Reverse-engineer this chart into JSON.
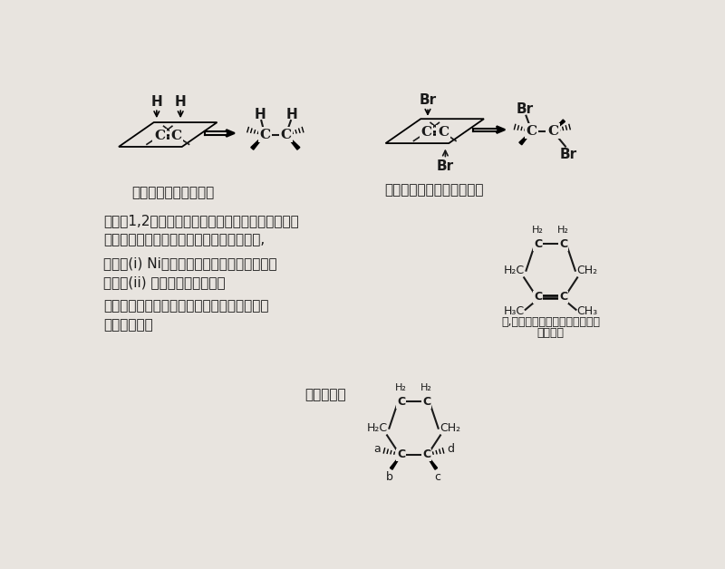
{
  "bg_color": "#e8e4df",
  "text_color": "#1a1a1a",
  "fig1_label": "図１　シス付加の様子",
  "fig2_label": "図２　トランス付加の様子",
  "q5_line1": "問５　1,2－ジメチルシクロヘキセンの構造式は右",
  "q5_line2": "　図のように表される。この分子に対して,",
  "q5_line3": "　　　(i) Ni触媒下での水素付加の主生成物",
  "q5_line4": "　　　(ii) 臭素付加の主生成物",
  "q5_line5": "の立体構造を，以下の例にならってそれぞれ",
  "q5_line6": "すべて記せ。",
  "struct_label1": "１,２－ジメチルシクロヘキセン",
  "struct_label2": "の構造式",
  "example_label": "（記入例）"
}
